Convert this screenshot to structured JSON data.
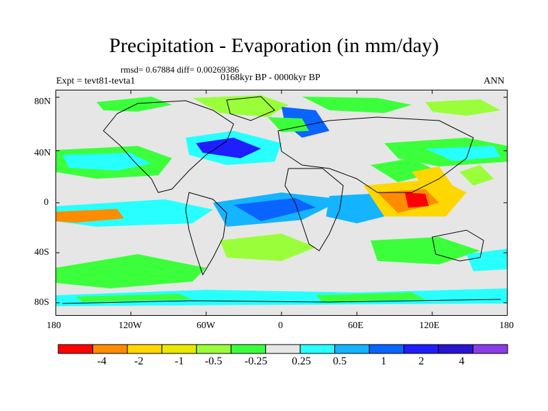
{
  "title": "Precipitation - Evaporation (in mm/day)",
  "stats": "rmsd= 0.67884  diff= 0.00269386",
  "period": "0168kyr BP - 0000kyr BP",
  "experiment": "Expt = tevt81-tevta1",
  "season": "ANN",
  "lat_labels": [
    "80N",
    "40N",
    "0",
    "40S",
    "80S"
  ],
  "lon_labels": [
    "180",
    "120W",
    "60W",
    "0",
    "60E",
    "120E",
    "180"
  ],
  "colorbar": {
    "colors": [
      "#ff0000",
      "#ff8c00",
      "#ffd700",
      "#e8e800",
      "#9aff3a",
      "#3cff3c",
      "#e6e6e6",
      "#28ffff",
      "#14b4ff",
      "#0a64ff",
      "#1e1eff",
      "#2814d2",
      "#8c3ce6"
    ],
    "labels": [
      "-4",
      "-2",
      "-1",
      "-0.5",
      "-0.25",
      "0.25",
      "0.5",
      "1",
      "2",
      "4"
    ]
  }
}
